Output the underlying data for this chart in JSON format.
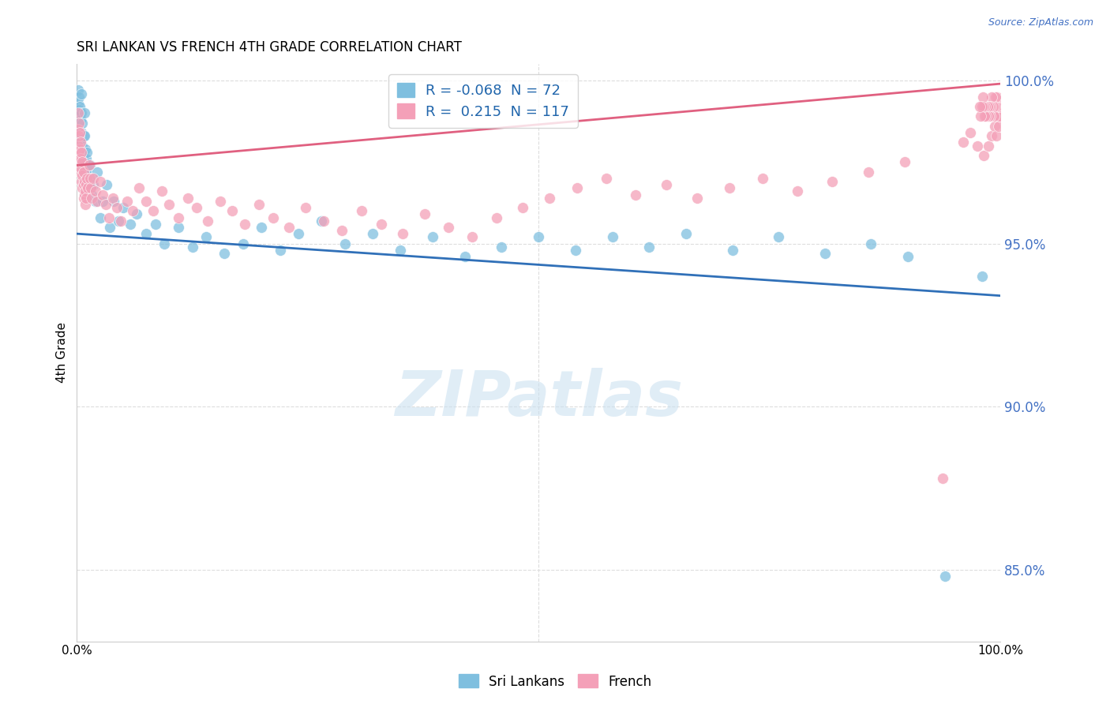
{
  "title": "SRI LANKAN VS FRENCH 4TH GRADE CORRELATION CHART",
  "source": "Source: ZipAtlas.com",
  "ylabel": "4th Grade",
  "xlim": [
    0.0,
    1.0
  ],
  "ylim": [
    0.828,
    1.005
  ],
  "sri_lankan_color": "#7fbfdf",
  "french_color": "#f4a0b8",
  "sri_lankan_R": -0.068,
  "sri_lankan_N": 72,
  "french_R": 0.215,
  "french_N": 117,
  "trend_blue": "#3070b8",
  "trend_pink": "#e06080",
  "sri_lankan_x": [
    0.001,
    0.001,
    0.001,
    0.002,
    0.002,
    0.002,
    0.003,
    0.003,
    0.003,
    0.004,
    0.004,
    0.005,
    0.005,
    0.005,
    0.006,
    0.006,
    0.007,
    0.007,
    0.008,
    0.008,
    0.009,
    0.009,
    0.01,
    0.01,
    0.011,
    0.012,
    0.013,
    0.014,
    0.015,
    0.016,
    0.018,
    0.02,
    0.022,
    0.025,
    0.028,
    0.032,
    0.036,
    0.04,
    0.045,
    0.05,
    0.058,
    0.065,
    0.075,
    0.085,
    0.095,
    0.11,
    0.125,
    0.14,
    0.16,
    0.18,
    0.2,
    0.22,
    0.24,
    0.265,
    0.29,
    0.32,
    0.35,
    0.385,
    0.42,
    0.46,
    0.5,
    0.54,
    0.58,
    0.62,
    0.66,
    0.71,
    0.76,
    0.81,
    0.86,
    0.9,
    0.94,
    0.98
  ],
  "sri_lankan_y": [
    0.997,
    0.993,
    0.989,
    0.995,
    0.991,
    0.986,
    0.992,
    0.987,
    0.982,
    0.988,
    0.983,
    0.996,
    0.99,
    0.984,
    0.987,
    0.98,
    0.983,
    0.976,
    0.99,
    0.983,
    0.979,
    0.972,
    0.976,
    0.969,
    0.978,
    0.973,
    0.968,
    0.974,
    0.97,
    0.965,
    0.968,
    0.963,
    0.972,
    0.958,
    0.963,
    0.968,
    0.955,
    0.963,
    0.957,
    0.961,
    0.956,
    0.959,
    0.953,
    0.956,
    0.95,
    0.955,
    0.949,
    0.952,
    0.947,
    0.95,
    0.955,
    0.948,
    0.953,
    0.957,
    0.95,
    0.953,
    0.948,
    0.952,
    0.946,
    0.949,
    0.952,
    0.948,
    0.952,
    0.949,
    0.953,
    0.948,
    0.952,
    0.947,
    0.95,
    0.946,
    0.848,
    0.94
  ],
  "french_x": [
    0.001,
    0.001,
    0.001,
    0.002,
    0.002,
    0.002,
    0.003,
    0.003,
    0.003,
    0.004,
    0.004,
    0.004,
    0.005,
    0.005,
    0.005,
    0.006,
    0.006,
    0.006,
    0.007,
    0.007,
    0.007,
    0.008,
    0.008,
    0.009,
    0.009,
    0.01,
    0.01,
    0.011,
    0.012,
    0.013,
    0.014,
    0.015,
    0.016,
    0.018,
    0.02,
    0.022,
    0.025,
    0.028,
    0.031,
    0.035,
    0.039,
    0.043,
    0.048,
    0.054,
    0.06,
    0.067,
    0.075,
    0.083,
    0.092,
    0.1,
    0.11,
    0.12,
    0.13,
    0.142,
    0.155,
    0.168,
    0.182,
    0.197,
    0.213,
    0.23,
    0.248,
    0.267,
    0.287,
    0.308,
    0.33,
    0.353,
    0.377,
    0.402,
    0.428,
    0.455,
    0.483,
    0.512,
    0.542,
    0.573,
    0.605,
    0.638,
    0.672,
    0.707,
    0.743,
    0.78,
    0.818,
    0.857,
    0.897,
    0.938,
    0.96,
    0.968,
    0.975,
    0.982,
    0.987,
    0.991,
    0.994,
    0.996,
    0.998,
    0.999,
    1.0,
    0.999,
    0.998,
    0.997,
    0.996,
    0.995,
    0.994,
    0.993,
    0.992,
    0.991,
    0.99,
    0.989,
    0.988,
    0.987,
    0.986,
    0.985,
    0.984,
    0.983,
    0.982,
    0.981,
    0.98,
    0.979,
    0.978
  ],
  "french_y": [
    0.99,
    0.985,
    0.98,
    0.987,
    0.983,
    0.978,
    0.984,
    0.979,
    0.975,
    0.981,
    0.976,
    0.972,
    0.978,
    0.973,
    0.969,
    0.975,
    0.971,
    0.967,
    0.972,
    0.968,
    0.964,
    0.969,
    0.965,
    0.966,
    0.962,
    0.968,
    0.964,
    0.97,
    0.967,
    0.974,
    0.97,
    0.967,
    0.964,
    0.97,
    0.966,
    0.963,
    0.969,
    0.965,
    0.962,
    0.958,
    0.964,
    0.961,
    0.957,
    0.963,
    0.96,
    0.967,
    0.963,
    0.96,
    0.966,
    0.962,
    0.958,
    0.964,
    0.961,
    0.957,
    0.963,
    0.96,
    0.956,
    0.962,
    0.958,
    0.955,
    0.961,
    0.957,
    0.954,
    0.96,
    0.956,
    0.953,
    0.959,
    0.955,
    0.952,
    0.958,
    0.961,
    0.964,
    0.967,
    0.97,
    0.965,
    0.968,
    0.964,
    0.967,
    0.97,
    0.966,
    0.969,
    0.972,
    0.975,
    0.878,
    0.981,
    0.984,
    0.98,
    0.977,
    0.98,
    0.983,
    0.986,
    0.983,
    0.986,
    0.989,
    0.992,
    0.989,
    0.992,
    0.995,
    0.992,
    0.995,
    0.992,
    0.989,
    0.992,
    0.995,
    0.992,
    0.989,
    0.992,
    0.989,
    0.992,
    0.989,
    0.992,
    0.989,
    0.992,
    0.995,
    0.992,
    0.989,
    0.992
  ],
  "watermark": "ZIPatlas",
  "background_color": "#ffffff",
  "grid_color": "#dddddd"
}
